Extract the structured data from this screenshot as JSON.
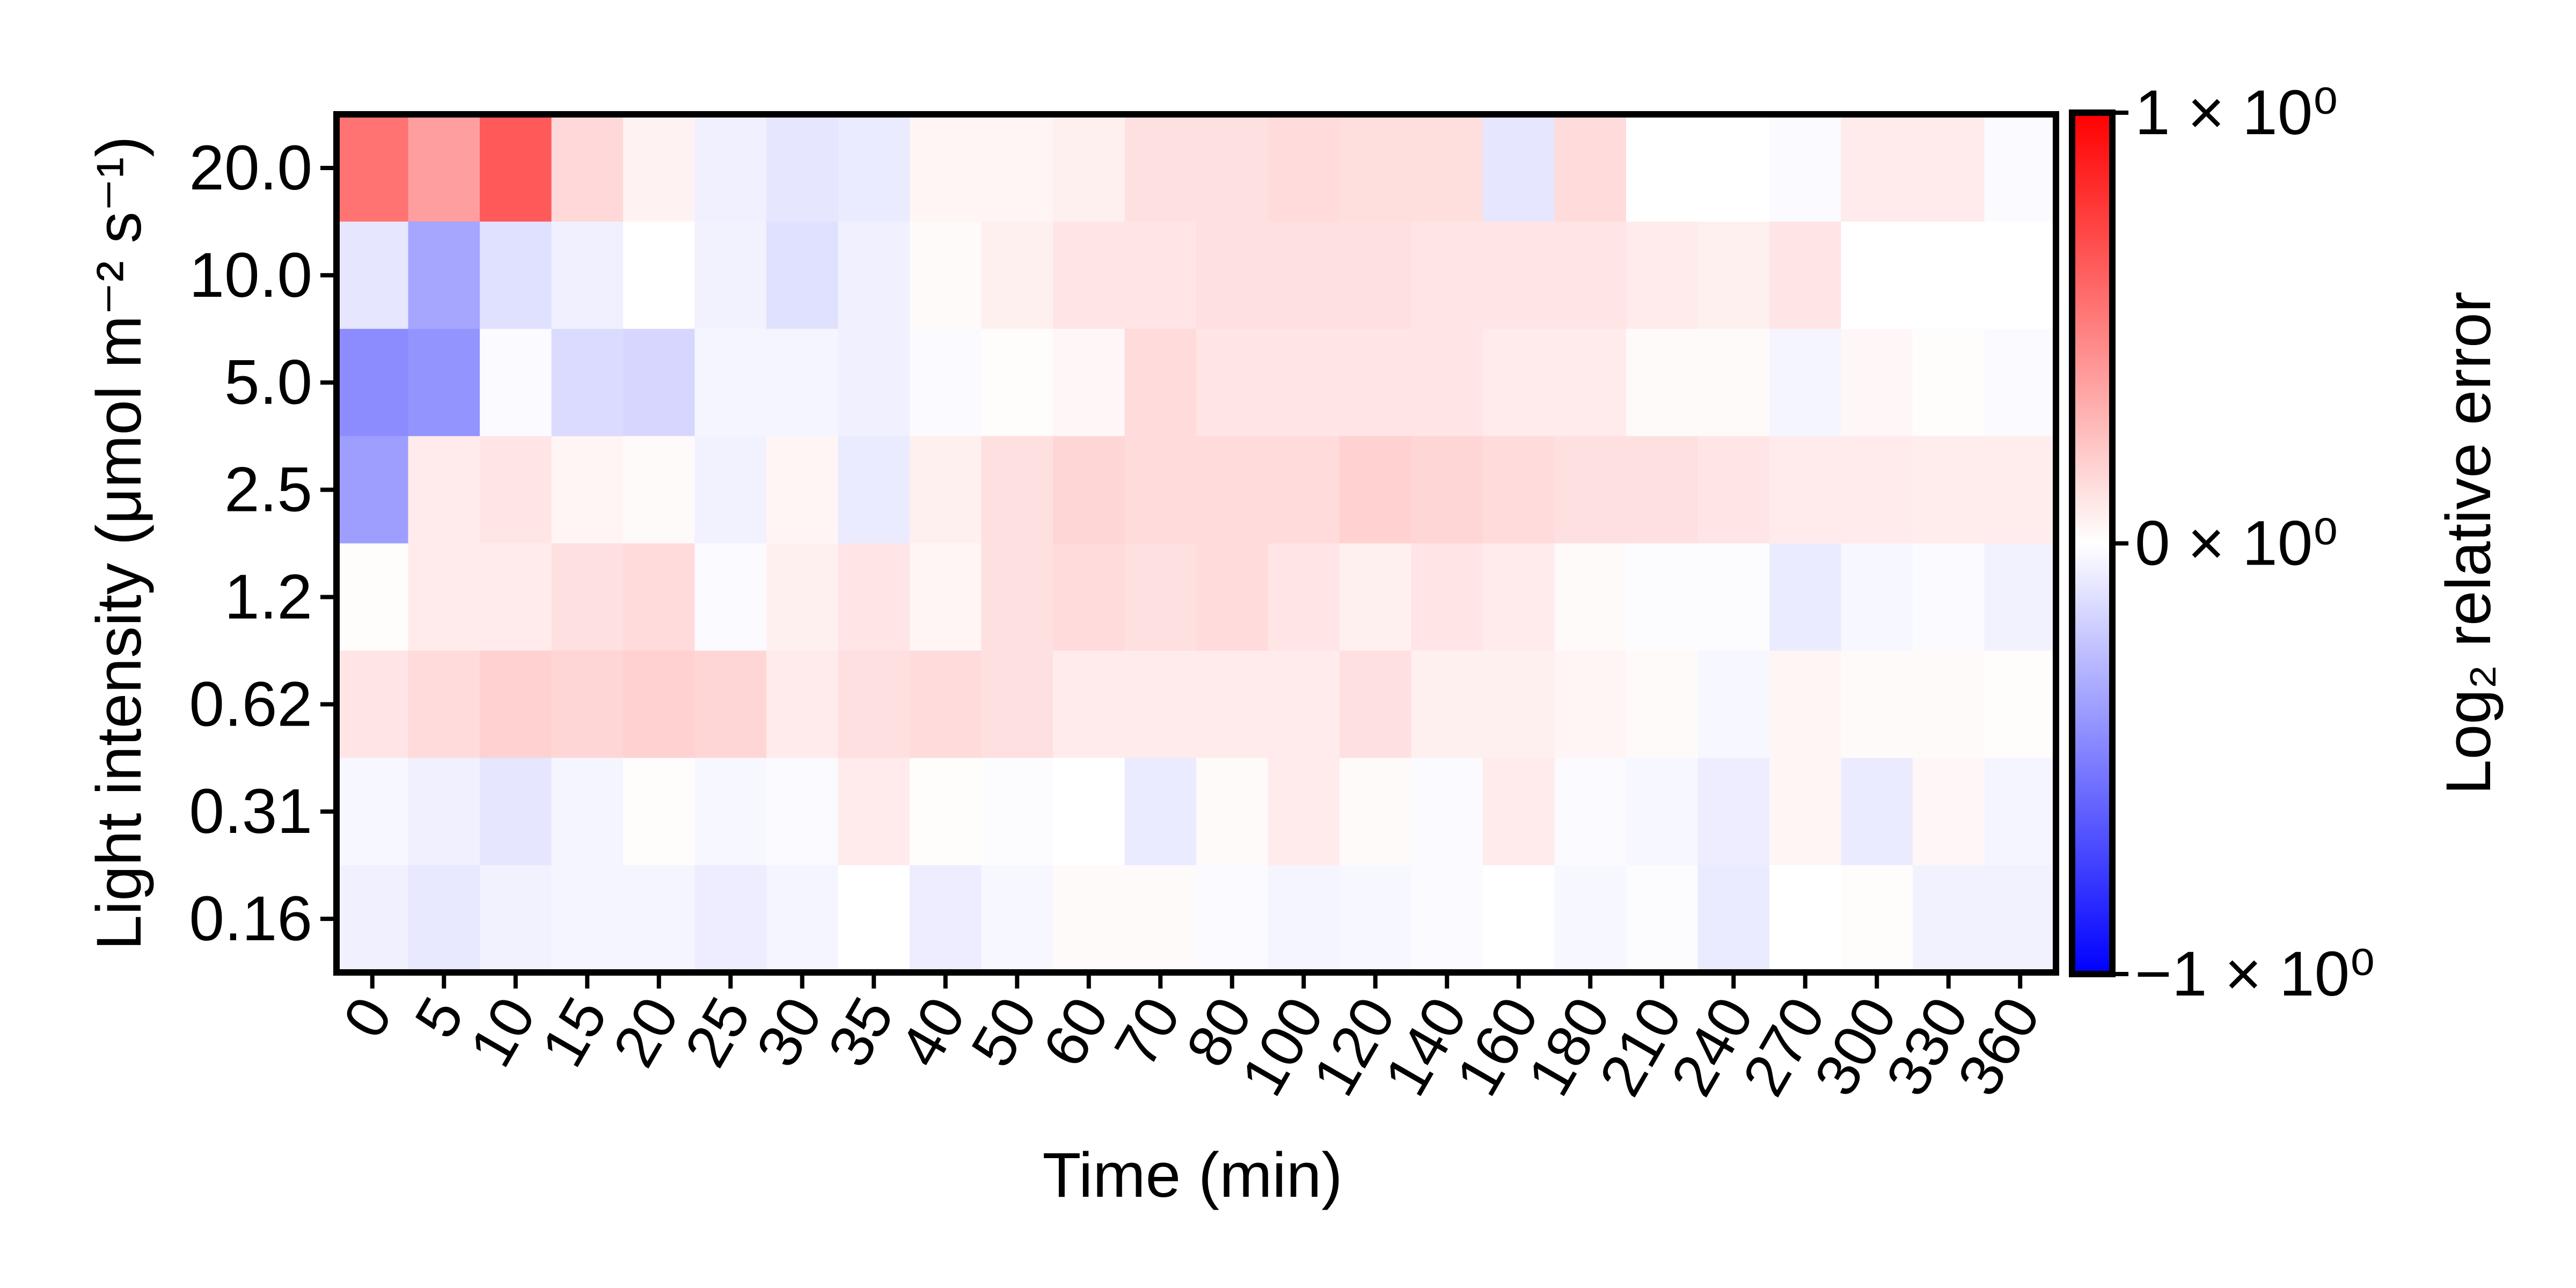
{
  "chart_data": {
    "type": "heatmap",
    "title": "",
    "xlabel": "Time (min)",
    "ylabel": "Light intensity (μmol m⁻² s⁻¹)",
    "x_categories": [
      "0",
      "5",
      "10",
      "15",
      "20",
      "25",
      "30",
      "35",
      "40",
      "50",
      "60",
      "70",
      "80",
      "100",
      "120",
      "140",
      "160",
      "180",
      "210",
      "240",
      "270",
      "300",
      "330",
      "360"
    ],
    "y_categories": [
      "20.0",
      "10.0",
      "5.0",
      "2.5",
      "1.2",
      "0.62",
      "0.31",
      "0.16"
    ],
    "values": [
      [
        0.55,
        0.38,
        0.65,
        0.15,
        0.05,
        -0.06,
        -0.1,
        -0.08,
        0.04,
        0.04,
        0.06,
        0.12,
        0.12,
        0.14,
        0.13,
        0.13,
        -0.1,
        0.14,
        0.0,
        0.0,
        -0.02,
        0.08,
        0.08,
        -0.02
      ],
      [
        -0.1,
        -0.35,
        -0.12,
        -0.06,
        0.0,
        -0.05,
        -0.12,
        -0.06,
        0.02,
        0.06,
        0.1,
        0.1,
        0.12,
        0.12,
        0.12,
        0.1,
        0.1,
        0.1,
        0.08,
        0.06,
        0.1,
        0.0,
        0.0,
        0.0
      ],
      [
        -0.45,
        -0.42,
        -0.02,
        -0.14,
        -0.16,
        -0.04,
        -0.04,
        -0.06,
        -0.02,
        0.01,
        0.03,
        0.14,
        0.1,
        0.1,
        0.1,
        0.1,
        0.08,
        0.08,
        0.02,
        0.02,
        -0.04,
        0.03,
        0.01,
        -0.02
      ],
      [
        -0.38,
        0.08,
        0.1,
        0.04,
        0.02,
        -0.05,
        0.04,
        -0.08,
        0.06,
        0.12,
        0.16,
        0.14,
        0.14,
        0.14,
        0.18,
        0.16,
        0.14,
        0.12,
        0.12,
        0.1,
        0.08,
        0.08,
        0.07,
        0.07
      ],
      [
        0.01,
        0.08,
        0.08,
        0.12,
        0.14,
        -0.02,
        0.06,
        0.1,
        0.04,
        0.12,
        0.14,
        0.12,
        0.14,
        0.1,
        0.06,
        0.1,
        0.08,
        0.02,
        -0.01,
        -0.01,
        -0.08,
        -0.03,
        -0.02,
        -0.05
      ],
      [
        0.1,
        0.14,
        0.18,
        0.16,
        0.18,
        0.16,
        0.08,
        0.12,
        0.14,
        0.12,
        0.08,
        0.08,
        0.08,
        0.08,
        0.12,
        0.06,
        0.06,
        0.04,
        0.02,
        -0.03,
        0.04,
        0.02,
        0.02,
        0.01
      ],
      [
        -0.03,
        -0.06,
        -0.1,
        -0.04,
        0.01,
        -0.03,
        -0.02,
        0.08,
        0.01,
        -0.01,
        0.0,
        -0.08,
        0.02,
        0.08,
        0.02,
        -0.02,
        0.08,
        -0.02,
        -0.03,
        -0.07,
        0.04,
        -0.08,
        0.03,
        -0.04
      ],
      [
        -0.06,
        -0.09,
        -0.05,
        -0.04,
        -0.04,
        -0.07,
        -0.04,
        0.0,
        -0.07,
        -0.03,
        0.02,
        0.02,
        -0.02,
        -0.04,
        -0.03,
        -0.02,
        0.0,
        -0.03,
        -0.01,
        -0.08,
        0.0,
        0.01,
        -0.05,
        -0.05
      ]
    ],
    "colorbar": {
      "label": "Log₂ relative error",
      "range": [
        -1,
        1
      ],
      "colormap": [
        "#0000ff",
        "#ffffff",
        "#ff0000"
      ],
      "ticks": [
        {
          "value": 1,
          "label": "1 × 10⁰"
        },
        {
          "value": 0,
          "label": "0 × 10⁰"
        },
        {
          "value": -1,
          "label": "−1 × 10⁰"
        }
      ]
    },
    "grid": false,
    "legend": "none"
  }
}
